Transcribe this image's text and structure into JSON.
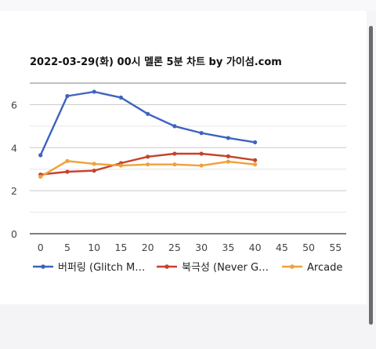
{
  "chart_data": {
    "type": "line",
    "title": "2022-03-29(화) 00시 멜론 5분 차트 by 가이섬.com",
    "xlabel": "",
    "ylabel": "",
    "x": [
      0,
      5,
      10,
      15,
      20,
      25,
      30,
      35,
      40
    ],
    "x_ticks": [
      0,
      5,
      10,
      15,
      20,
      25,
      30,
      35,
      40,
      45,
      50,
      55
    ],
    "xlim": [
      -2,
      57
    ],
    "y_ticks": [
      0,
      2,
      4,
      6
    ],
    "ylim": [
      0,
      7
    ],
    "grid": true,
    "legend_position": "bottom",
    "series": [
      {
        "name": "버퍼링 (Glitch M…",
        "color": "#3e63bf",
        "values": [
          3.65,
          6.4,
          6.6,
          6.33,
          5.57,
          5.0,
          4.68,
          4.45,
          4.25
        ]
      },
      {
        "name": "북극성 (Never G…",
        "color": "#c8412a",
        "values": [
          2.75,
          2.88,
          2.93,
          3.28,
          3.58,
          3.72,
          3.72,
          3.6,
          3.42
        ]
      },
      {
        "name": "Arcade",
        "color": "#eea23a",
        "values": [
          2.65,
          3.38,
          3.25,
          3.17,
          3.22,
          3.22,
          3.17,
          3.35,
          3.22
        ]
      }
    ]
  }
}
